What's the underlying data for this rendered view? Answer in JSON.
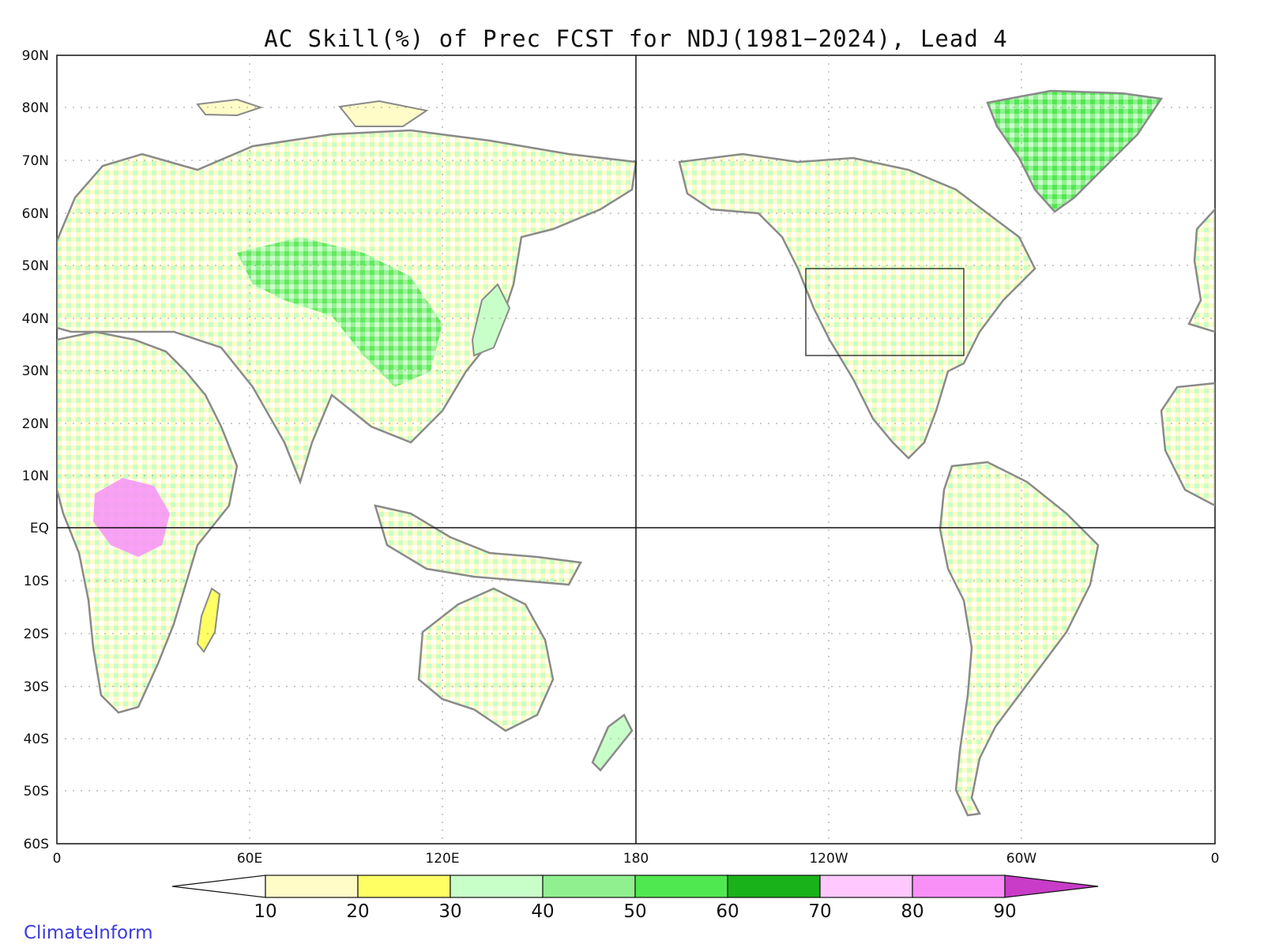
{
  "title": "AC Skill(%) of Prec FCST for NDJ(1981−2024), Lead 4",
  "lat_labels": [
    "90N",
    "80N",
    "70N",
    "60N",
    "50N",
    "40N",
    "30N",
    "20N",
    "10N",
    "EQ",
    "10S",
    "20S",
    "30S",
    "40S",
    "50S",
    "60S"
  ],
  "lon_labels": [
    "0",
    "60E",
    "120E",
    "180",
    "120W",
    "60W",
    "0"
  ],
  "colorbar": {
    "labels": [
      "10",
      "20",
      "30",
      "40",
      "50",
      "60",
      "70",
      "80",
      "90"
    ],
    "colors": [
      "#ffffff",
      "#fffcc8",
      "#ffff64",
      "#c8ffc8",
      "#90f090",
      "#50e850",
      "#1ab21a",
      "#ffc8ff",
      "#f890f8",
      "#c83cc8"
    ]
  },
  "map": {
    "lat_range": [
      -60,
      90
    ],
    "lon_range": [
      0,
      360
    ],
    "gridlines": "dotted",
    "reference_lines": [
      "equator",
      "180"
    ]
  },
  "brand": "ClimateInform"
}
